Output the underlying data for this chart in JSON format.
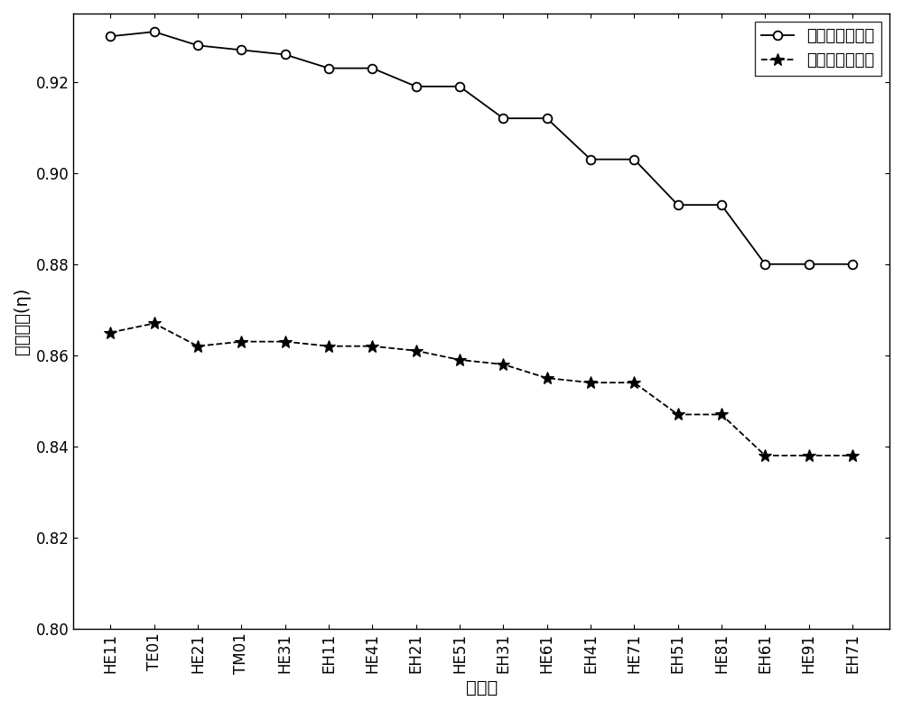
{
  "x_labels": [
    "HE11",
    "TE01",
    "HE21",
    "TM01",
    "HE31",
    "EH11",
    "HE41",
    "EH21",
    "HE51",
    "EH31",
    "HE61",
    "EH41",
    "HE71",
    "EH51",
    "HE81",
    "EH61",
    "HE91",
    "EH71"
  ],
  "double_step": [
    0.93,
    0.931,
    0.928,
    0.927,
    0.926,
    0.923,
    0.923,
    0.919,
    0.919,
    0.912,
    0.912,
    0.903,
    0.903,
    0.893,
    0.893,
    0.88,
    0.88,
    0.88
  ],
  "single_step": [
    0.865,
    0.867,
    0.862,
    0.863,
    0.863,
    0.862,
    0.862,
    0.861,
    0.859,
    0.858,
    0.855,
    0.854,
    0.854,
    0.847,
    0.847,
    0.838,
    0.838,
    0.838
  ],
  "ylabel": "模式质量(η)",
  "xlabel": "矢量模",
  "legend_double": "双阶跳环芯结构",
  "legend_single": "单阶跳环芯结构",
  "ylim": [
    0.8,
    0.935
  ],
  "yticks": [
    0.8,
    0.82,
    0.84,
    0.86,
    0.88,
    0.9,
    0.92
  ],
  "line_color": "#000000",
  "bg_color": "#ffffff",
  "label_fontsize": 14,
  "tick_fontsize": 12,
  "legend_fontsize": 13
}
